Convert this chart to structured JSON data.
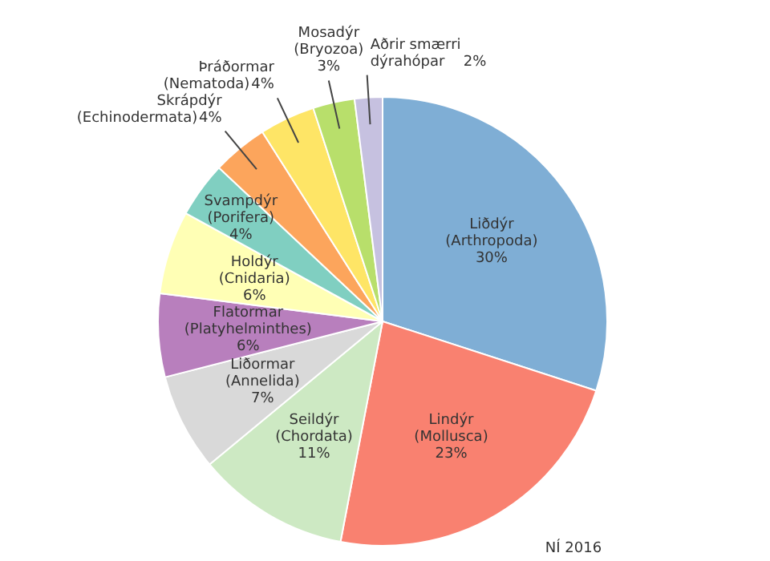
{
  "chart_data": {
    "type": "pie",
    "categories": [
      "Liðdýr\n(Arthropoda)",
      "Lindýr\n(Mollusca)",
      "Seildýr\n(Chordata)",
      "Liðormar\n(Annelida)",
      "Flatormar\n(Platyhelminthes)",
      "Holdýr\n(Cnidaria)",
      "Svampdýr\n(Porifera)",
      "Skrápdýr\n(Echinodermata)",
      "Þráðormar\n(Nematoda)",
      "Mosadýr\n(Bryozoa)",
      "Aðrir smærri\ndýrahópar"
    ],
    "values": [
      30,
      23,
      11,
      7,
      6,
      6,
      4,
      4,
      4,
      3,
      2
    ],
    "value_labels": [
      "30%",
      "23%",
      "11%",
      "7%",
      "6%",
      "6%",
      "4%",
      "4%",
      "4%",
      "3%",
      "2%"
    ],
    "colors": [
      "#7faed5",
      "#f98170",
      "#cde9c3",
      "#d9d9d9",
      "#b87fbd",
      "#ffffb5",
      "#80cfc1",
      "#fca55c",
      "#fee566",
      "#b8df6b",
      "#c6c1e0"
    ],
    "annotations": [
      "NÍ 2016"
    ]
  }
}
